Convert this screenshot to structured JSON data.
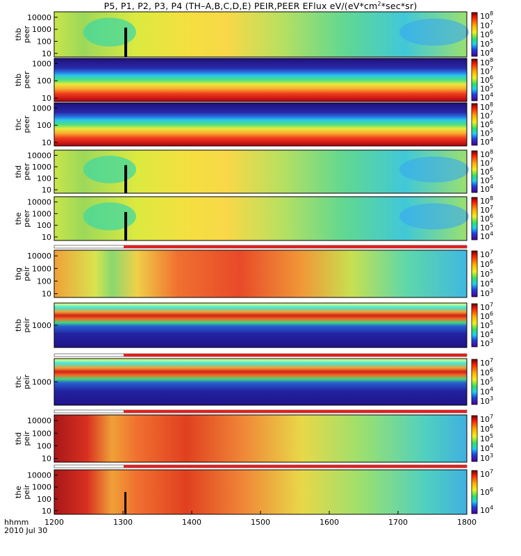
{
  "title": {
    "main": "P5, P1, P2, P3, P4 (TH–A,B,C,D,E) PEIR,PEER EFlux eV/(eV*cm",
    "sup": "2",
    "tail": "*sec*sr)"
  },
  "footer": {
    "label_top": "hhmm",
    "label_date": "2010 Jul 30"
  },
  "chart_data": {
    "type": "heatmap",
    "title": "P5, P1, P2, P3, P4 (TH–A,B,C,D,E) PEIR,PEER EFlux eV/(eV*cm2*sec*sr)",
    "x_axis": {
      "label": "hhmm",
      "date": "2010 Jul 30",
      "ticks": [
        "1200",
        "1300",
        "1400",
        "1500",
        "1600",
        "1700",
        "1800"
      ],
      "range": [
        "1200",
        "1800"
      ]
    },
    "y_scale": "log",
    "color_scale": "log, rainbow (purple-blue-cyan-green-yellow-red-darkred)",
    "panels": [
      {
        "label": [
          "thb",
          "peer"
        ],
        "ylabel": "thb peer",
        "yticks": [
          "10000",
          "1000",
          "100",
          "10"
        ],
        "cbar_ticks": [
          "10^8",
          "10^7",
          "10^6",
          "10^5",
          "10^4"
        ]
      },
      {
        "label": [
          "thb",
          "peer"
        ],
        "ylabel": "thb peer",
        "yticks": [
          "1000",
          "100",
          "10"
        ],
        "cbar_ticks": [
          "10^8",
          "10^7",
          "10^6",
          "10^5",
          "10^4"
        ]
      },
      {
        "label": [
          "thc",
          "peer"
        ],
        "ylabel": "thc peer",
        "yticks": [
          "1000",
          "100",
          "10"
        ],
        "cbar_ticks": [
          "10^8",
          "10^7",
          "10^6",
          "10^5",
          "10^4"
        ]
      },
      {
        "label": [
          "thd",
          "peer"
        ],
        "ylabel": "thd peer",
        "yticks": [
          "10000",
          "1000",
          "100",
          "10"
        ],
        "cbar_ticks": [
          "10^8",
          "10^7",
          "10^6",
          "10^5",
          "10^4"
        ]
      },
      {
        "label": [
          "the",
          "peer"
        ],
        "ylabel": "the peer",
        "yticks": [
          "10000",
          "1000",
          "100",
          "10"
        ],
        "cbar_ticks": [
          "10^8",
          "10^7",
          "10^6",
          "10^5",
          "10^4"
        ]
      },
      {
        "label": [
          "thg",
          "peir"
        ],
        "ylabel": "thg peir",
        "yticks": [
          "10000",
          "1000",
          "100",
          "10"
        ],
        "cbar_ticks": [
          "10^7",
          "10^6",
          "10^5",
          "10^4",
          "10^3"
        ]
      },
      {
        "label": [
          "thb",
          "peir"
        ],
        "ylabel": "thb peir",
        "yticks": [
          "1000"
        ],
        "cbar_ticks": [
          "10^7",
          "10^6",
          "10^5",
          "10^4",
          "10^3"
        ]
      },
      {
        "label": [
          "thc",
          "peir"
        ],
        "ylabel": "thc peir",
        "yticks": [
          "1000"
        ],
        "cbar_ticks": [
          "10^7",
          "10^6",
          "10^5",
          "10^4",
          "10^3"
        ]
      },
      {
        "label": [
          "thd",
          "peir"
        ],
        "ylabel": "thd peir",
        "yticks": [
          "10000",
          "1000",
          "100",
          "10"
        ],
        "cbar_ticks": [
          "10^7",
          "10^6",
          "10^5",
          "10^4",
          "10^3"
        ]
      },
      {
        "label": [
          "the",
          "peir"
        ],
        "ylabel": "the peir",
        "yticks": [
          "10000",
          "1000",
          "100",
          "10"
        ],
        "cbar_ticks": [
          "10^7",
          "10^6",
          "10^4"
        ]
      }
    ]
  }
}
